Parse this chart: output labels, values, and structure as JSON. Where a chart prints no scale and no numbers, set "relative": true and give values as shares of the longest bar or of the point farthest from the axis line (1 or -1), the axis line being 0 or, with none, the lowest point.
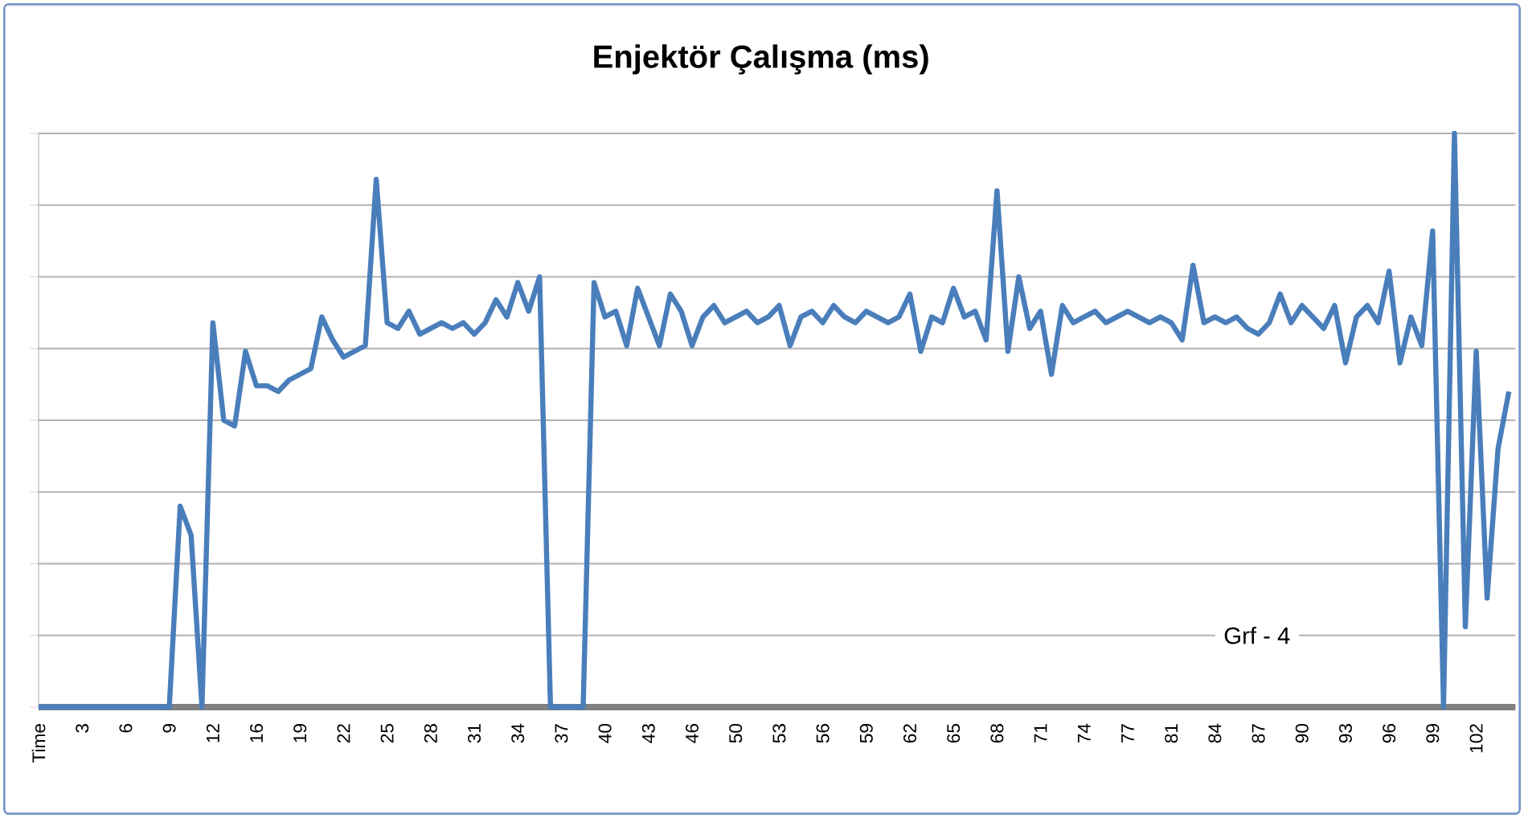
{
  "chart_data": {
    "type": "line",
    "title": "Enjektör Çalışma (ms)",
    "relative": true,
    "grid": "y",
    "color": "#4a7ebb",
    "annotations": [
      "Grf - 4"
    ],
    "categories": [
      "Time",
      null,
      null,
      null,
      "3",
      null,
      null,
      null,
      "6",
      null,
      null,
      null,
      "9",
      null,
      null,
      null,
      "12",
      null,
      null,
      null,
      "16",
      null,
      null,
      null,
      "19",
      null,
      null,
      null,
      "22",
      null,
      null,
      null,
      "25",
      null,
      null,
      null,
      "28",
      null,
      null,
      null,
      "31",
      null,
      null,
      null,
      "34",
      null,
      null,
      null,
      "37",
      null,
      null,
      null,
      "40",
      null,
      null,
      null,
      "43",
      null,
      null,
      null,
      "46",
      null,
      null,
      null,
      "50",
      null,
      null,
      null,
      "53",
      null,
      null,
      null,
      "56",
      null,
      null,
      null,
      "59",
      null,
      null,
      null,
      "62",
      null,
      null,
      null,
      "65",
      null,
      null,
      null,
      "68",
      null,
      null,
      null,
      "71",
      null,
      null,
      null,
      "74",
      null,
      null,
      null,
      "77",
      null,
      null,
      null,
      "81",
      null,
      null,
      null,
      "84",
      null,
      null,
      null,
      "87",
      null,
      null,
      null,
      "90",
      null,
      null,
      null,
      "93",
      null,
      null,
      null,
      "96",
      null,
      null,
      null,
      "99",
      null,
      null,
      null,
      "102",
      null,
      null,
      null
    ],
    "values": [
      0,
      0,
      0,
      0,
      0,
      0,
      0,
      0,
      0,
      0,
      0,
      0,
      0,
      0.35,
      0.3,
      0,
      0.67,
      0.5,
      0.49,
      0.62,
      0.56,
      0.56,
      0.55,
      0.57,
      0.58,
      0.59,
      0.68,
      0.64,
      0.61,
      0.62,
      0.63,
      0.92,
      0.67,
      0.66,
      0.69,
      0.65,
      0.66,
      0.67,
      0.66,
      0.67,
      0.65,
      0.67,
      0.71,
      0.68,
      0.74,
      0.69,
      0.75,
      0,
      0,
      0,
      0,
      0.74,
      0.68,
      0.69,
      0.63,
      0.73,
      0.68,
      0.63,
      0.72,
      0.69,
      0.63,
      0.68,
      0.7,
      0.67,
      0.68,
      0.69,
      0.67,
      0.68,
      0.7,
      0.63,
      0.68,
      0.69,
      0.67,
      0.7,
      0.68,
      0.67,
      0.69,
      0.68,
      0.67,
      0.68,
      0.72,
      0.62,
      0.68,
      0.67,
      0.73,
      0.68,
      0.69,
      0.64,
      0.9,
      0.62,
      0.75,
      0.66,
      0.69,
      0.58,
      0.7,
      0.67,
      0.68,
      0.69,
      0.67,
      0.68,
      0.69,
      0.68,
      0.67,
      0.68,
      0.67,
      0.64,
      0.77,
      0.67,
      0.68,
      0.67,
      0.68,
      0.66,
      0.65,
      0.67,
      0.72,
      0.67,
      0.7,
      0.68,
      0.66,
      0.7,
      0.6,
      0.68,
      0.7,
      0.67,
      0.76,
      0.6,
      0.68,
      0.63,
      0.83,
      0,
      1,
      0.14,
      0.62,
      0.19,
      0.45,
      0.55
    ]
  }
}
